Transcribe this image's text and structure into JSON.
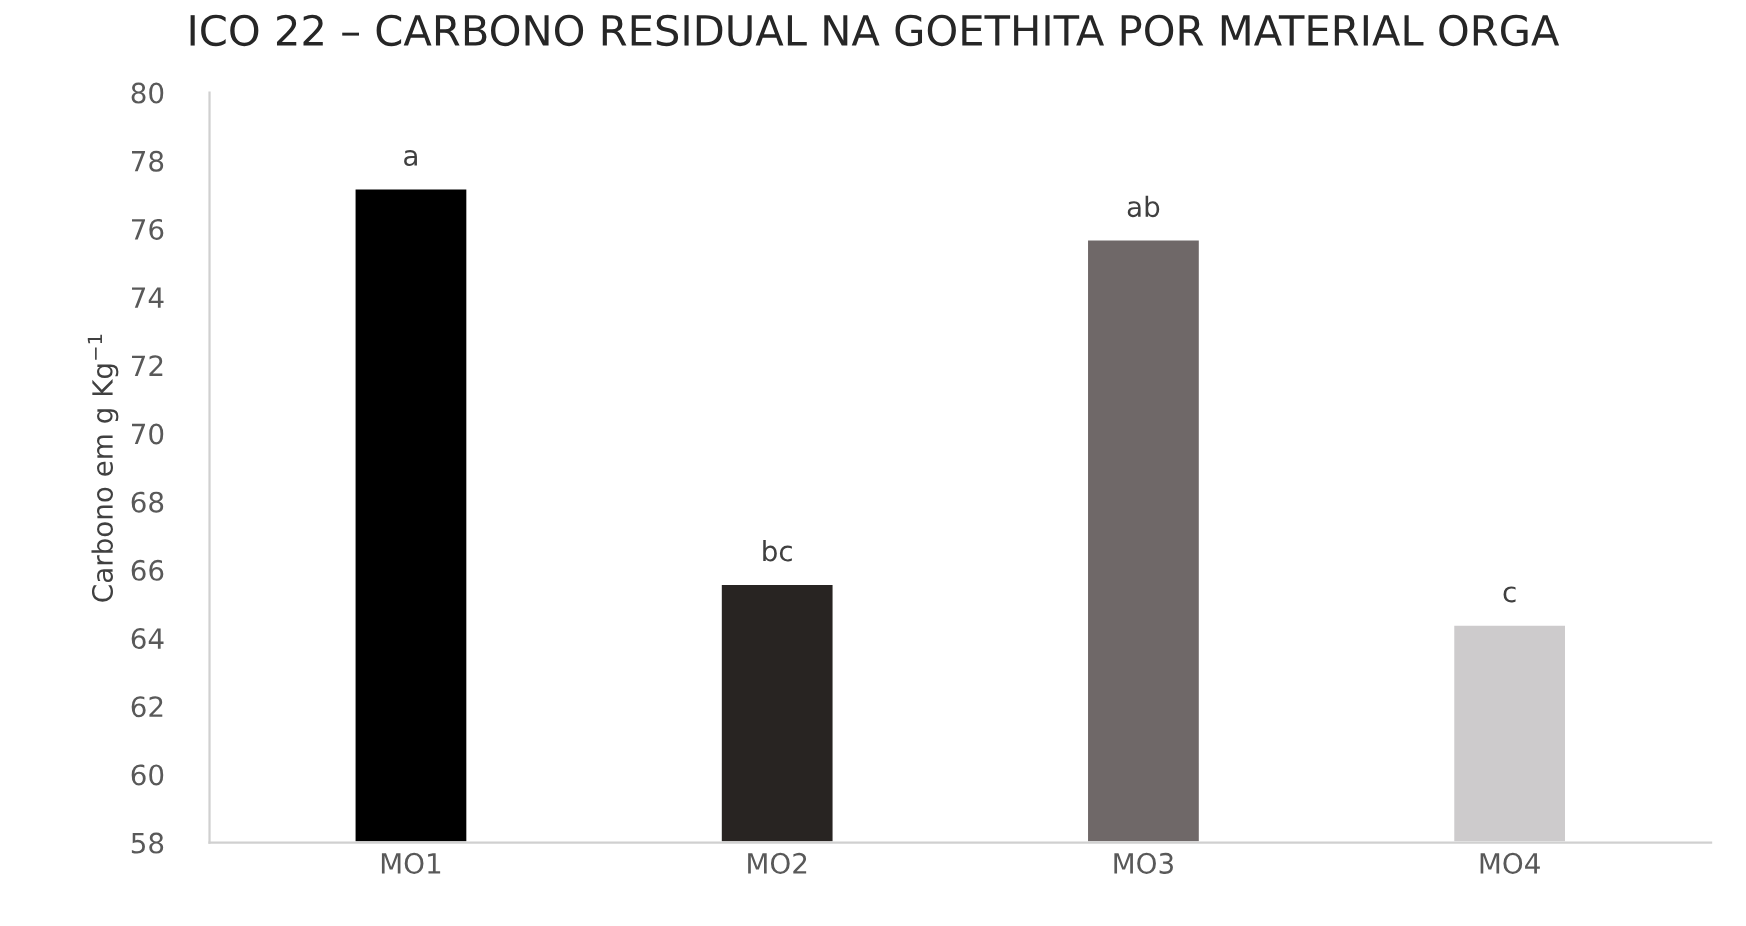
{
  "chart_data": {
    "type": "bar",
    "title": "ICO 22 – CARBONO RESIDUAL NA GOETHITA POR MATERIAL ORGA",
    "ylabel": "Carbono em g Kg$^{−1}$",
    "categories": [
      "MO1",
      "MO2",
      "MO3",
      "MO4"
    ],
    "values": [
      77.2,
      65.6,
      75.7,
      64.4
    ],
    "colors": [
      "#000000",
      "#282422",
      "#6f6868",
      "#cdcbcc"
    ],
    "value_labels": [
      "a",
      "bc",
      "ab",
      "c"
    ],
    "ylim": [
      58,
      80
    ],
    "yticks": [
      58,
      60,
      62,
      64,
      66,
      68,
      70,
      72,
      74,
      76,
      78,
      80
    ],
    "grid": false,
    "legend": false
  }
}
